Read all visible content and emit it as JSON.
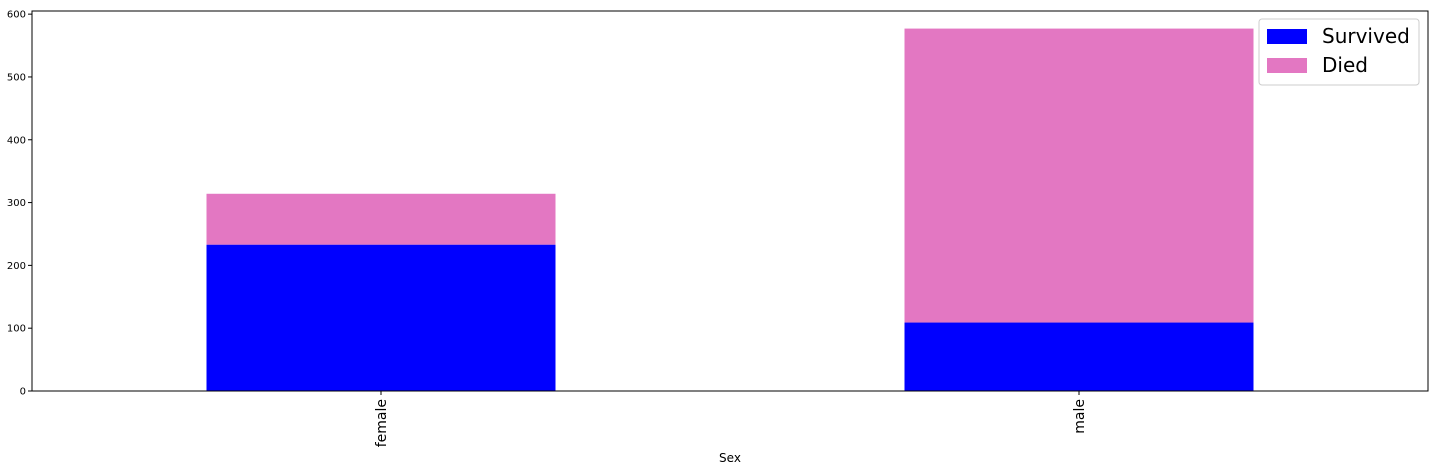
{
  "chart_data": {
    "type": "bar",
    "stacked": true,
    "categories": [
      "female",
      "male"
    ],
    "series": [
      {
        "name": "Survived",
        "values": [
          233,
          109
        ],
        "color": "#0000ff"
      },
      {
        "name": "Died",
        "values": [
          81,
          468
        ],
        "color": "#e377c2"
      }
    ],
    "title": "",
    "xlabel": "Sex",
    "ylabel": "",
    "ylim": [
      0,
      605
    ],
    "yticks": [
      0,
      100,
      200,
      300,
      400,
      500,
      600
    ],
    "grid": false,
    "legend": {
      "position": "top-right"
    }
  }
}
